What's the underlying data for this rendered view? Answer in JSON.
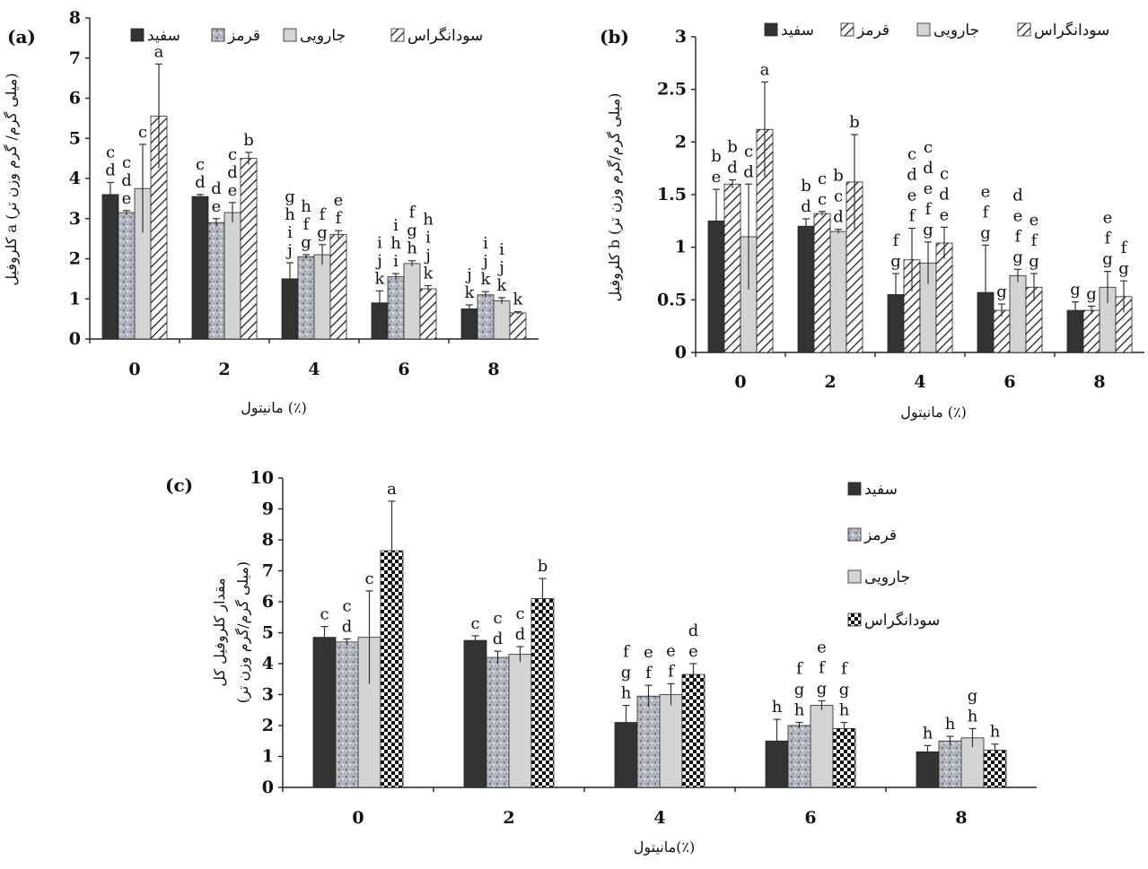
{
  "colors": {
    "solid": "#333333",
    "gray_fill": "#cfcfcf",
    "speckle_fill": "#b5b8c2",
    "hatch_stroke": "#111111",
    "axis": "#222222"
  },
  "chart_data": [
    {
      "id": "a",
      "type": "bar",
      "panel_tag": "(a)",
      "ylabel": "کلروفیل a (میلی گرم/ گرم وزن تر)",
      "xlabel": "مانیتول (٪)",
      "categories": [
        "0",
        "2",
        "4",
        "6",
        "8"
      ],
      "ylim": [
        0,
        8
      ],
      "yticks": [
        "0",
        "1",
        "2",
        "3",
        "4",
        "5",
        "6",
        "7",
        "8"
      ],
      "legend_placement": "top",
      "series": [
        {
          "name": "سفید",
          "pattern": "solid",
          "values": [
            3.6,
            3.55,
            1.5,
            0.9,
            0.75
          ],
          "errors": [
            0.3,
            0.05,
            0.4,
            0.3,
            0.1
          ],
          "letters": [
            "c d",
            "c d",
            "g h i j",
            "i j k",
            "j k"
          ]
        },
        {
          "name": "قرمز",
          "pattern": "speckle",
          "values": [
            3.15,
            2.9,
            2.05,
            1.55,
            1.1
          ],
          "errors": [
            0.05,
            0.1,
            0.05,
            0.08,
            0.08
          ],
          "letters": [
            "c d e",
            "d e",
            "h f g",
            "i h i",
            "i j k"
          ]
        },
        {
          "name": "جارویی",
          "pattern": "gray",
          "values": [
            3.75,
            3.15,
            2.1,
            1.88,
            0.95
          ],
          "errors": [
            1.1,
            0.25,
            0.25,
            0.07,
            0.08
          ],
          "letters": [
            "c",
            "c d e",
            "f g",
            "f g h",
            "i j k"
          ]
        },
        {
          "name": "سودانگراس",
          "pattern": "hatch",
          "values": [
            5.55,
            4.5,
            2.6,
            1.25,
            0.65
          ],
          "errors": [
            1.3,
            0.15,
            0.1,
            0.08,
            0.03
          ],
          "letters": [
            "a",
            "b",
            "e f",
            "h i j k",
            "k"
          ]
        }
      ]
    },
    {
      "id": "b",
      "type": "bar",
      "panel_tag": "(b)",
      "ylabel": "کلروفیل b (میلی گرم/گرم وزن تر)",
      "xlabel": "مانیتول (٪)",
      "categories": [
        "0",
        "2",
        "4",
        "6",
        "8"
      ],
      "ylim": [
        0,
        3
      ],
      "yticks": [
        "0",
        "0.5",
        "1",
        "1.5",
        "2",
        "2.5",
        "3"
      ],
      "legend_placement": "top",
      "series": [
        {
          "name": "سفید",
          "pattern": "solid",
          "values": [
            1.25,
            1.2,
            0.55,
            0.57,
            0.4
          ],
          "errors": [
            0.3,
            0.07,
            0.2,
            0.45,
            0.08
          ],
          "letters": [
            "b e",
            "b d",
            "f g",
            "e f g",
            "g"
          ]
        },
        {
          "name": "قرمز",
          "pattern": "hatch",
          "values": [
            1.6,
            1.32,
            0.88,
            0.4,
            0.4
          ],
          "errors": [
            0.04,
            0.02,
            0.3,
            0.06,
            0.04
          ],
          "letters": [
            "b d",
            "c c",
            "c d e f",
            "g",
            "g"
          ]
        },
        {
          "name": "جارویی",
          "pattern": "gray",
          "values": [
            1.1,
            1.15,
            0.85,
            0.73,
            0.62
          ],
          "errors": [
            0.5,
            0.02,
            0.2,
            0.06,
            0.15
          ],
          "letters": [
            "c d",
            "b c d",
            "c d e f g",
            "d e f g",
            "e f g"
          ]
        },
        {
          "name": "سودانگراس",
          "pattern": "hatch",
          "values": [
            2.12,
            1.62,
            1.04,
            0.62,
            0.53
          ],
          "errors": [
            0.45,
            0.45,
            0.15,
            0.13,
            0.15
          ],
          "letters": [
            "a",
            "b",
            "c d e",
            "e f g",
            "f g"
          ]
        }
      ]
    },
    {
      "id": "c",
      "type": "bar",
      "panel_tag": "(c)",
      "ylabel_line1": "مقدار کلروفیل کل",
      "ylabel_line2": "(میلی گرم/گرم وزن تر)",
      "xlabel": "مانیتول(٪)",
      "categories": [
        "0",
        "2",
        "4",
        "6",
        "8"
      ],
      "ylim": [
        0,
        10
      ],
      "yticks": [
        "0",
        "1",
        "2",
        "3",
        "4",
        "5",
        "6",
        "7",
        "8",
        "9",
        "10"
      ],
      "legend_placement": "right",
      "series": [
        {
          "name": "سفید",
          "pattern": "solid",
          "values": [
            4.85,
            4.75,
            2.1,
            1.5,
            1.15
          ],
          "errors": [
            0.35,
            0.15,
            0.55,
            0.7,
            0.2
          ],
          "letters": [
            "c",
            "c",
            "f g h",
            "h",
            "h"
          ]
        },
        {
          "name": "قرمز",
          "pattern": "speckle",
          "values": [
            4.7,
            4.2,
            2.95,
            2.0,
            1.5
          ],
          "errors": [
            0.1,
            0.2,
            0.35,
            0.1,
            0.15
          ],
          "letters": [
            "c d",
            "c d",
            "e f",
            "f g h",
            "h"
          ]
        },
        {
          "name": "جارویی",
          "pattern": "gray",
          "values": [
            4.85,
            4.3,
            3.0,
            2.65,
            1.6
          ],
          "errors": [
            1.5,
            0.25,
            0.35,
            0.15,
            0.3
          ],
          "letters": [
            "c",
            "c d",
            "e f",
            "e f g",
            "g h"
          ]
        },
        {
          "name": "سودانگراس",
          "pattern": "checker",
          "values": [
            7.65,
            6.1,
            3.65,
            1.9,
            1.2
          ],
          "errors": [
            1.6,
            0.65,
            0.35,
            0.2,
            0.2
          ],
          "letters": [
            "a",
            "b",
            "d e",
            "f g h",
            "h"
          ]
        }
      ]
    }
  ]
}
